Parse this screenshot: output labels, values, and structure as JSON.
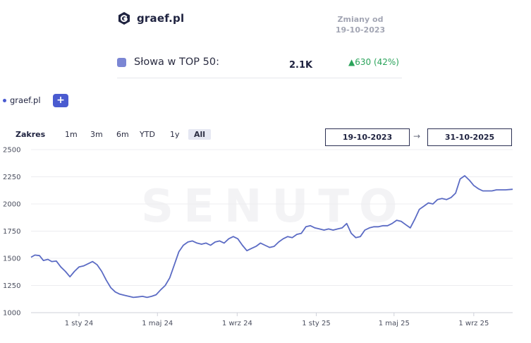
{
  "header": {
    "brand": "graef.pl",
    "changes_title": "Zmiany od",
    "changes_date": "19-10-2023"
  },
  "metric": {
    "label": "Słowa w TOP 50:",
    "value": "2.1K",
    "delta": "▲630 (42%)",
    "swatch_color": "#7b86d4",
    "delta_color": "#2aa35a"
  },
  "legend": {
    "series_name": "graef.pl",
    "add_label": "+"
  },
  "range": {
    "label": "Zakres",
    "buttons": [
      "1m",
      "3m",
      "6m",
      "YTD",
      "1y",
      "All"
    ],
    "active": "All",
    "from": "19-10-2023",
    "to": "31-10-2025",
    "arrow": "→"
  },
  "watermark": "SENUTO",
  "chart_data": {
    "type": "line",
    "title": "",
    "xlabel": "",
    "ylabel": "",
    "ylim": [
      1000,
      2500
    ],
    "yticks": [
      1000,
      1250,
      1500,
      1750,
      2000,
      2250,
      2500
    ],
    "xticks": [
      "1 sty 24",
      "1 maj 24",
      "1 wrz 24",
      "1 sty 25",
      "1 maj 25",
      "1 wrz 25"
    ],
    "xtick_dates": [
      "2024-01-01",
      "2024-05-01",
      "2024-09-01",
      "2025-01-01",
      "2025-05-01",
      "2025-09-01"
    ],
    "x_range": [
      "2023-10-19",
      "2025-10-31"
    ],
    "grid": true,
    "line_color": "#5b6bc4",
    "series": [
      {
        "name": "graef.pl",
        "x": [
          "2023-10-19",
          "2023-10-25",
          "2023-11-01",
          "2023-11-07",
          "2023-11-14",
          "2023-11-20",
          "2023-11-27",
          "2023-12-04",
          "2023-12-11",
          "2023-12-18",
          "2023-12-25",
          "2024-01-01",
          "2024-01-08",
          "2024-01-15",
          "2024-01-22",
          "2024-01-29",
          "2024-02-05",
          "2024-02-12",
          "2024-02-19",
          "2024-02-26",
          "2024-03-04",
          "2024-03-11",
          "2024-03-18",
          "2024-03-25",
          "2024-04-01",
          "2024-04-08",
          "2024-04-15",
          "2024-04-22",
          "2024-04-29",
          "2024-05-06",
          "2024-05-13",
          "2024-05-20",
          "2024-05-27",
          "2024-06-03",
          "2024-06-10",
          "2024-06-17",
          "2024-06-24",
          "2024-07-01",
          "2024-07-08",
          "2024-07-15",
          "2024-07-22",
          "2024-07-29",
          "2024-08-05",
          "2024-08-12",
          "2024-08-19",
          "2024-08-26",
          "2024-09-02",
          "2024-09-09",
          "2024-09-16",
          "2024-09-23",
          "2024-09-30",
          "2024-10-07",
          "2024-10-14",
          "2024-10-21",
          "2024-10-28",
          "2024-11-04",
          "2024-11-11",
          "2024-11-18",
          "2024-11-25",
          "2024-12-02",
          "2024-12-09",
          "2024-12-16",
          "2024-12-23",
          "2024-12-30",
          "2025-01-06",
          "2025-01-13",
          "2025-01-20",
          "2025-01-27",
          "2025-02-03",
          "2025-02-10",
          "2025-02-17",
          "2025-02-24",
          "2025-03-03",
          "2025-03-10",
          "2025-03-17",
          "2025-03-24",
          "2025-03-31",
          "2025-04-07",
          "2025-04-14",
          "2025-04-21",
          "2025-04-28",
          "2025-05-05",
          "2025-05-12",
          "2025-05-19",
          "2025-05-26",
          "2025-06-02",
          "2025-06-09",
          "2025-06-16",
          "2025-06-23",
          "2025-06-30",
          "2025-07-07",
          "2025-07-14",
          "2025-07-21",
          "2025-07-28",
          "2025-08-04",
          "2025-08-11",
          "2025-08-18",
          "2025-08-25",
          "2025-09-01",
          "2025-09-08",
          "2025-09-15",
          "2025-09-22",
          "2025-09-29",
          "2025-10-06",
          "2025-10-13",
          "2025-10-20",
          "2025-10-31"
        ],
        "values": [
          1510,
          1530,
          1525,
          1480,
          1490,
          1470,
          1475,
          1420,
          1380,
          1330,
          1380,
          1420,
          1430,
          1450,
          1470,
          1440,
          1380,
          1300,
          1230,
          1190,
          1170,
          1160,
          1150,
          1140,
          1145,
          1150,
          1140,
          1150,
          1165,
          1210,
          1250,
          1320,
          1440,
          1560,
          1620,
          1650,
          1660,
          1640,
          1630,
          1640,
          1620,
          1650,
          1660,
          1640,
          1680,
          1700,
          1680,
          1620,
          1570,
          1590,
          1610,
          1640,
          1620,
          1600,
          1610,
          1650,
          1680,
          1700,
          1690,
          1720,
          1730,
          1790,
          1800,
          1780,
          1770,
          1760,
          1770,
          1760,
          1770,
          1780,
          1820,
          1730,
          1690,
          1700,
          1760,
          1780,
          1790,
          1790,
          1800,
          1800,
          1820,
          1850,
          1840,
          1810,
          1780,
          1860,
          1950,
          1980,
          2010,
          2000,
          2040,
          2050,
          2040,
          2060,
          2100,
          2230,
          2260,
          2220,
          2170,
          2140,
          2120,
          2120,
          2120,
          2130,
          2130,
          2130,
          2135
        ]
      }
    ]
  }
}
